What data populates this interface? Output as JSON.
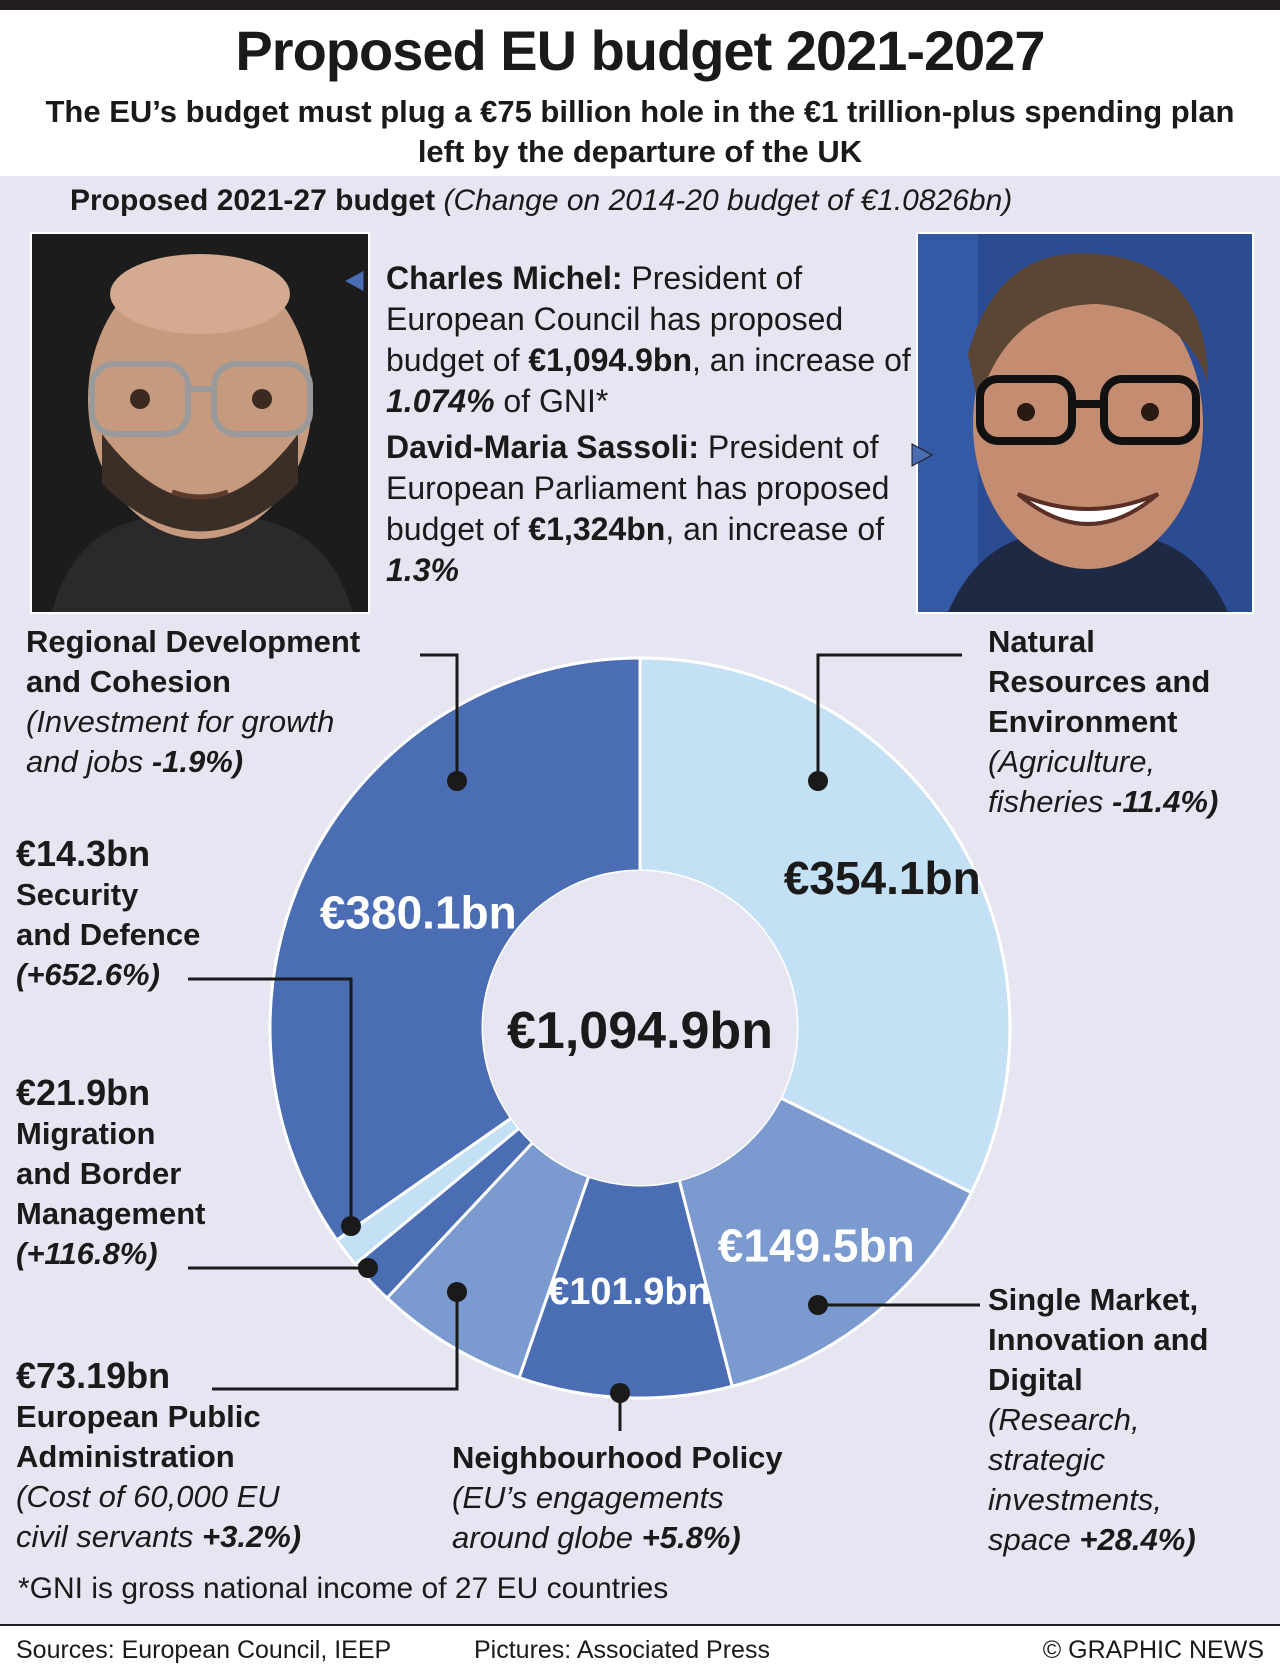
{
  "header": {
    "title": "Proposed EU budget 2021-2027",
    "subtitle": "The EU’s budget must plug a €75 billion hole in the €1 trillion-plus spending plan left by the departure of the UK"
  },
  "section": {
    "bold": "Proposed 2021-27 budget",
    "italic": "(Change on 2014-20 budget of €1.0826bn)"
  },
  "michel": {
    "name": "Charles Michel:",
    "text1": " President of European Council has proposed budget of ",
    "amount": "€1,094.9bn",
    "text2": ", an increase of ",
    "pct": "1.074%",
    "text3": " of GNI*"
  },
  "sassoli": {
    "name": "David-Maria Sassoli:",
    "text1": " President of European Parliament has proposed budget of ",
    "amount": "€1,324bn",
    "text2": ", an increase of ",
    "pct": "1.3%"
  },
  "labels": {
    "regional": {
      "head1": "Regional Development",
      "head2": "and Cohesion",
      "note1": "(Investment for growth",
      "note2": "and jobs ",
      "change": "-1.9%)"
    },
    "natural": {
      "head1": "Natural",
      "head2": "Resources and",
      "head3": "Environment",
      "note1": "(Agriculture,",
      "note2": "fisheries ",
      "change": "-11.4%)"
    },
    "security": {
      "value": "€14.3bn",
      "head1": "Security",
      "head2": "and Defence",
      "change": "(+652.6%)"
    },
    "migration": {
      "value": "€21.9bn",
      "head1": "Migration",
      "head2": "and Border",
      "head3": "Management",
      "change": "(+116.8%)"
    },
    "admin": {
      "value": "€73.19bn",
      "head1": "European Public",
      "head2": "Administration",
      "note1": "(Cost of 60,000 EU",
      "note2": "civil servants ",
      "change": "+3.2%)"
    },
    "neighbour": {
      "head1": "Neighbourhood Policy",
      "note1": "(EU’s engagements",
      "note2": "around globe ",
      "change": "+5.8%)"
    },
    "market": {
      "head1": "Single Market,",
      "head2": "Innovation and",
      "head3": "Digital",
      "note1": "(Research,",
      "note2": "strategic",
      "note3": "investments,",
      "note4": "space ",
      "change": "+28.4%)"
    }
  },
  "chart_data": {
    "type": "pie",
    "title": "Proposed 2021-27 budget",
    "total_label": "€1,094.9bn",
    "slices": [
      {
        "name": "Natural Resources and Environment",
        "value": 354.1,
        "label": "€354.1bn",
        "color": "#c3e0f5",
        "label_color": "#1a1a1a"
      },
      {
        "name": "Single Market, Innovation and Digital",
        "value": 149.5,
        "label": "€149.5bn",
        "color": "#7b9acf",
        "label_color": "#ffffff"
      },
      {
        "name": "Neighbourhood Policy",
        "value": 101.9,
        "label": "€101.9bn",
        "color": "#4a6db3",
        "label_color": "#ffffff"
      },
      {
        "name": "European Public Administration",
        "value": 73.19,
        "label": "",
        "color": "#7b9acf",
        "label_color": "#ffffff"
      },
      {
        "name": "Migration and Border Management",
        "value": 21.9,
        "label": "",
        "color": "#4a6db3",
        "label_color": "#ffffff"
      },
      {
        "name": "Security and Defence",
        "value": 14.3,
        "label": "",
        "color": "#c3e0f5",
        "label_color": "#ffffff"
      },
      {
        "name": "Regional Development and Cohesion",
        "value": 380.1,
        "label": "€380.1bn",
        "color": "#4a6db3",
        "label_color": "#ffffff"
      }
    ]
  },
  "footnote": "*GNI is gross national income of 27 EU countries",
  "footer": {
    "sources": "Sources: European Council, IEEP",
    "pictures": "Pictures: Associated Press",
    "credit": "© GRAPHIC NEWS"
  }
}
